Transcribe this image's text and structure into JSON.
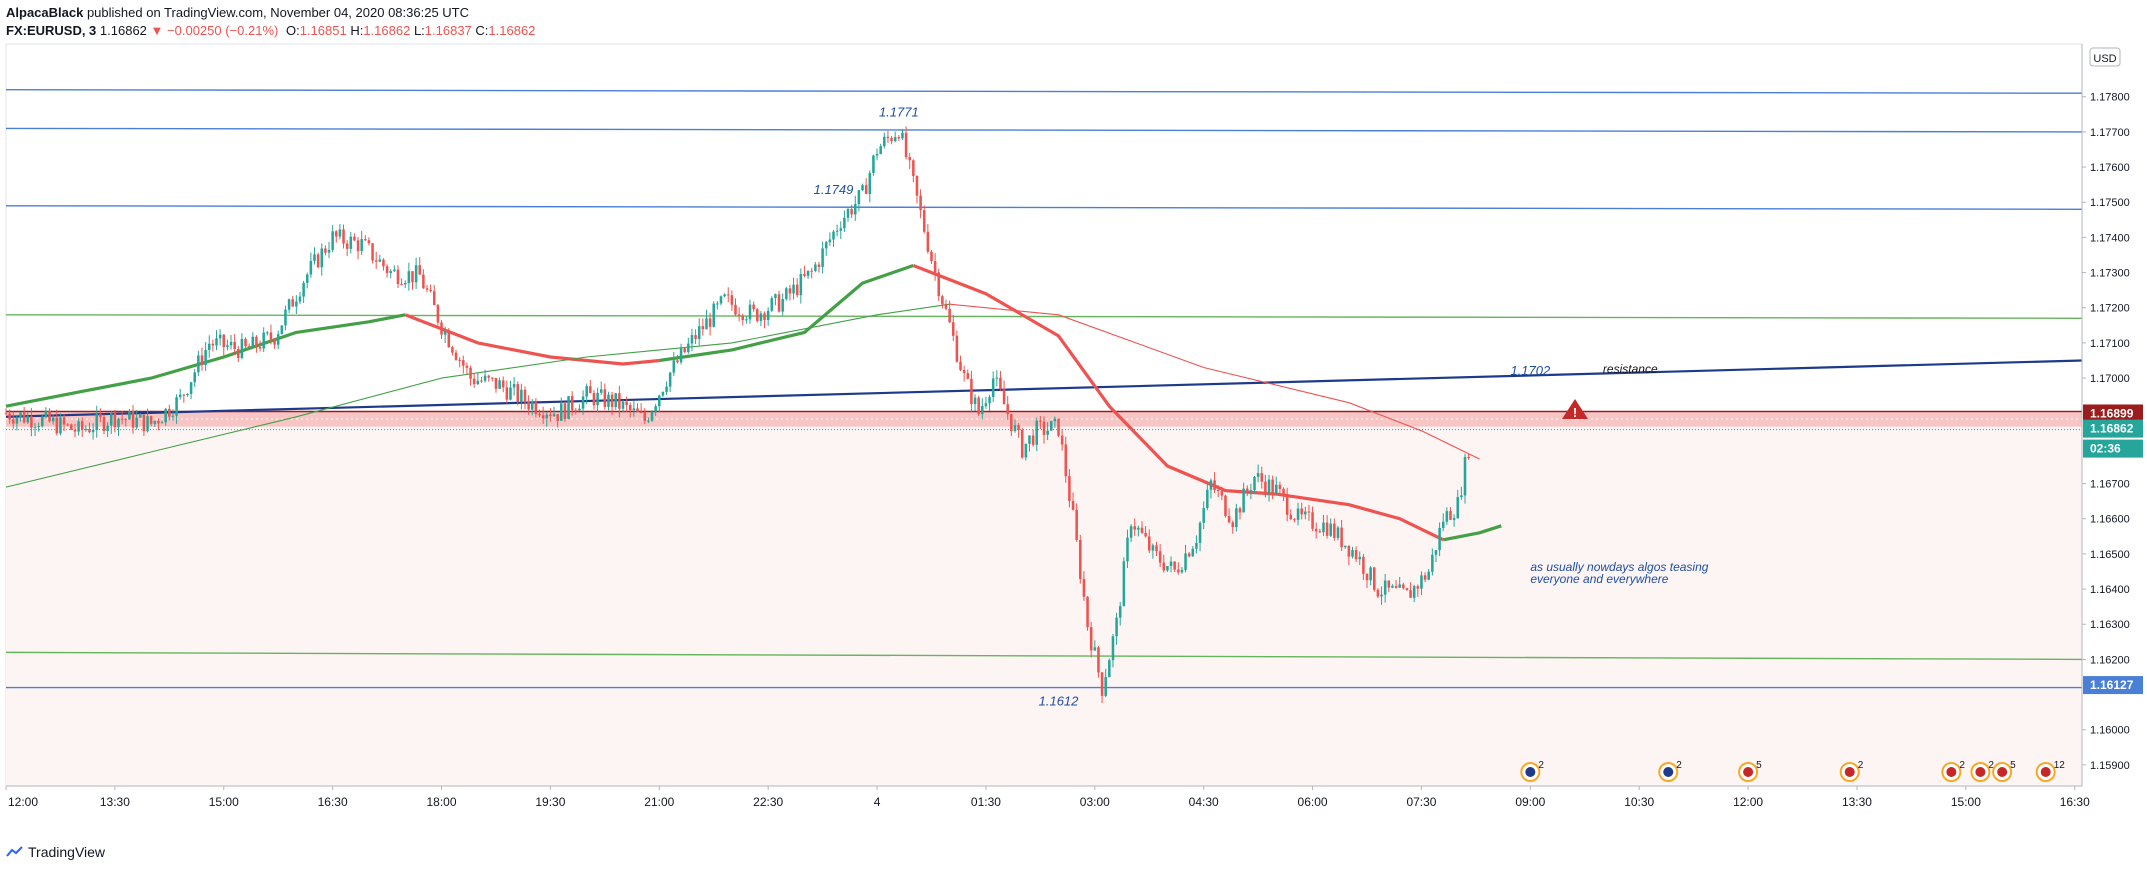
{
  "header": {
    "author": "AlpacaBlack",
    "published_text": "published on TradingView.com, November 04, 2020 08:36:25 UTC",
    "symbol": "FX:EURUSD, 3",
    "last": "1.16862",
    "change": "▼ −0.00250 (−0.21%)",
    "o_label": "O:",
    "o_value": "1.16851",
    "h_label": "H:",
    "h_value": "1.16862",
    "l_label": "L:",
    "l_value": "1.16837",
    "c_label": "C:",
    "c_value": "1.16862"
  },
  "footer": {
    "brand": "TradingView"
  },
  "colors": {
    "up": "#26a69a",
    "down": "#ef5350",
    "ma_green": "#43a047",
    "ma_red": "#ef5350",
    "blue_line": "#1e3a8a",
    "hline_blue": "#4a7fd8",
    "hline_green": "#66b45c",
    "zone": "#f7c3c3",
    "annotation": "#1e4fa3"
  },
  "chart_data": {
    "type": "candlestick",
    "symbol": "FX:EURUSD",
    "interval": "3",
    "currency_label": "USD",
    "ylim": [
      1.1584,
      1.1795
    ],
    "y_ticks": [
      "1.17800",
      "1.17700",
      "1.17600",
      "1.17500",
      "1.17400",
      "1.17300",
      "1.17200",
      "1.17100",
      "1.17000",
      "1.16700",
      "1.16600",
      "1.16500",
      "1.16400",
      "1.16300",
      "1.16200",
      "1.16000",
      "1.15900"
    ],
    "x_ticks": [
      "12:00",
      "13:30",
      "15:00",
      "16:30",
      "18:00",
      "19:30",
      "21:00",
      "22:30",
      "4",
      "01:30",
      "03:00",
      "04:30",
      "06:00",
      "07:30",
      "09:00",
      "10:30",
      "12:00",
      "13:30",
      "15:00",
      "16:30"
    ],
    "x_tick_hours": [
      12,
      13.5,
      15,
      16.5,
      18,
      19.5,
      21,
      22.5,
      24,
      25.5,
      27,
      28.5,
      30,
      31.5,
      33,
      34.5,
      36,
      37.5,
      39,
      40.5
    ],
    "x_range_hours": [
      12,
      40.6
    ],
    "price_path": [
      [
        12.0,
        1.169
      ],
      [
        12.5,
        1.1688
      ],
      [
        13.0,
        1.1685
      ],
      [
        13.5,
        1.1689
      ],
      [
        14.0,
        1.1687
      ],
      [
        14.4,
        1.1694
      ],
      [
        14.8,
        1.171
      ],
      [
        15.3,
        1.1708
      ],
      [
        15.7,
        1.1712
      ],
      [
        16.1,
        1.1728
      ],
      [
        16.5,
        1.174
      ],
      [
        16.9,
        1.1738
      ],
      [
        17.3,
        1.173
      ],
      [
        17.7,
        1.1729
      ],
      [
        18.0,
        1.1715
      ],
      [
        18.4,
        1.17
      ],
      [
        18.8,
        1.1698
      ],
      [
        19.2,
        1.1693
      ],
      [
        19.6,
        1.169
      ],
      [
        20.0,
        1.1695
      ],
      [
        20.4,
        1.1693
      ],
      [
        20.8,
        1.1688
      ],
      [
        21.1,
        1.17
      ],
      [
        21.5,
        1.1712
      ],
      [
        21.9,
        1.1722
      ],
      [
        22.3,
        1.1718
      ],
      [
        22.7,
        1.1722
      ],
      [
        23.1,
        1.173
      ],
      [
        23.5,
        1.1745
      ],
      [
        23.8,
        1.1752
      ],
      [
        24.0,
        1.1765
      ],
      [
        24.3,
        1.1771
      ],
      [
        24.5,
        1.1755
      ],
      [
        24.8,
        1.173
      ],
      [
        25.0,
        1.1715
      ],
      [
        25.2,
        1.17
      ],
      [
        25.4,
        1.169
      ],
      [
        25.6,
        1.17
      ],
      [
        25.8,
        1.169
      ],
      [
        26.0,
        1.168
      ],
      [
        26.2,
        1.1685
      ],
      [
        26.5,
        1.1686
      ],
      [
        26.7,
        1.166
      ],
      [
        26.9,
        1.163
      ],
      [
        27.1,
        1.1612
      ],
      [
        27.3,
        1.163
      ],
      [
        27.5,
        1.166
      ],
      [
        27.8,
        1.165
      ],
      [
        28.1,
        1.1645
      ],
      [
        28.4,
        1.1655
      ],
      [
        28.6,
        1.167
      ],
      [
        28.9,
        1.166
      ],
      [
        29.2,
        1.1672
      ],
      [
        29.5,
        1.1668
      ],
      [
        29.8,
        1.166
      ],
      [
        30.2,
        1.1658
      ],
      [
        30.6,
        1.165
      ],
      [
        30.9,
        1.164
      ],
      [
        31.3,
        1.1638
      ],
      [
        31.6,
        1.1645
      ],
      [
        31.8,
        1.166
      ],
      [
        32.0,
        1.1664
      ],
      [
        32.2,
        1.1686
      ]
    ],
    "series": [
      {
        "name": "",
        "type": "ma",
        "color": "#43a047",
        "points": [
          [
            12.0,
            1.1692
          ],
          [
            13.0,
            1.1696
          ],
          [
            14.0,
            1.17
          ],
          [
            15.0,
            1.1706
          ],
          [
            16.0,
            1.1713
          ],
          [
            17.0,
            1.1716
          ],
          [
            17.5,
            1.1718
          ]
        ]
      },
      {
        "name": "",
        "type": "ma",
        "color": "#ef5350",
        "points": [
          [
            17.5,
            1.1718
          ],
          [
            18.5,
            1.171
          ],
          [
            19.5,
            1.1706
          ],
          [
            20.5,
            1.1704
          ],
          [
            21.0,
            1.1705
          ]
        ]
      },
      {
        "name": "",
        "type": "ma",
        "color": "#43a047",
        "points": [
          [
            21.0,
            1.1705
          ],
          [
            22.0,
            1.1708
          ],
          [
            23.0,
            1.1713
          ],
          [
            23.8,
            1.1727
          ],
          [
            24.5,
            1.1732
          ]
        ]
      },
      {
        "name": "",
        "type": "ma",
        "color": "#ef5350",
        "points": [
          [
            24.5,
            1.1732
          ],
          [
            25.5,
            1.1724
          ],
          [
            26.5,
            1.1712
          ],
          [
            27.2,
            1.1692
          ],
          [
            28.0,
            1.1675
          ],
          [
            28.8,
            1.1668
          ],
          [
            29.5,
            1.1667
          ],
          [
            30.5,
            1.1664
          ],
          [
            31.2,
            1.166
          ],
          [
            31.8,
            1.1654
          ]
        ]
      },
      {
        "name": "",
        "type": "ma",
        "color": "#43a047",
        "points": [
          [
            31.8,
            1.1654
          ],
          [
            32.3,
            1.1656
          ],
          [
            32.6,
            1.1658
          ]
        ]
      },
      {
        "name": "",
        "type": "ma-thin",
        "color": "#43a047",
        "points": [
          [
            12.0,
            1.1669
          ],
          [
            14.0,
            1.1679
          ],
          [
            16.0,
            1.1689
          ],
          [
            18.0,
            1.17
          ],
          [
            20.0,
            1.1706
          ],
          [
            22.0,
            1.171
          ],
          [
            24.0,
            1.1718
          ],
          [
            25.0,
            1.1721
          ]
        ]
      },
      {
        "name": "",
        "type": "ma-thin",
        "color": "#ef5350",
        "points": [
          [
            25.0,
            1.1721
          ],
          [
            26.5,
            1.1718
          ],
          [
            28.5,
            1.1703
          ],
          [
            30.5,
            1.1693
          ],
          [
            31.5,
            1.1685
          ],
          [
            32.3,
            1.1677
          ]
        ]
      }
    ],
    "horizontal_lines": [
      {
        "price": 1.1782,
        "color": "#4a7fd8",
        "slope_end": 1.1781
      },
      {
        "price": 1.1771,
        "color": "#4a7fd8",
        "slope_end": 1.177
      },
      {
        "price": 1.1749,
        "color": "#4a7fd8",
        "slope_end": 1.1748
      },
      {
        "price": 1.1718,
        "color": "#66b45c",
        "slope_end": 1.1717
      },
      {
        "price": 1.1622,
        "color": "#66b45c",
        "slope_end": 1.162
      },
      {
        "price": 1.1612,
        "color": "#4a7fd8",
        "slope_end": 1.1612
      }
    ],
    "trendline": {
      "start": 1.1689,
      "end": 1.1705,
      "color": "#1e3a8a"
    },
    "resistance_zone": {
      "top": 1.16905,
      "bottom": 1.16862
    },
    "annotations": {
      "hi_1771": "1.1771",
      "hi_1749": "1.1749",
      "lvl_1702": "1.1702",
      "resistance": "resistance",
      "lo_1612": "1.1612",
      "comment_line1": "as usually nowdays algos teasing",
      "comment_line2": "everyone and everywhere"
    },
    "price_labels": {
      "zone": "1.16899",
      "last": "1.16862",
      "countdown": "02:36",
      "support": "1.16127"
    },
    "event_icons": [
      {
        "hour": 33.0,
        "kind": "flag",
        "count": "2"
      },
      {
        "hour": 34.9,
        "kind": "flag",
        "count": "2"
      },
      {
        "hour": 36.0,
        "kind": "us",
        "count": "5"
      },
      {
        "hour": 37.4,
        "kind": "us",
        "count": "2"
      },
      {
        "hour": 38.8,
        "kind": "us",
        "count": "2"
      },
      {
        "hour": 39.2,
        "kind": "us",
        "count": "2"
      },
      {
        "hour": 39.5,
        "kind": "us",
        "count": "5"
      },
      {
        "hour": 40.1,
        "kind": "us",
        "count": "12"
      }
    ]
  }
}
